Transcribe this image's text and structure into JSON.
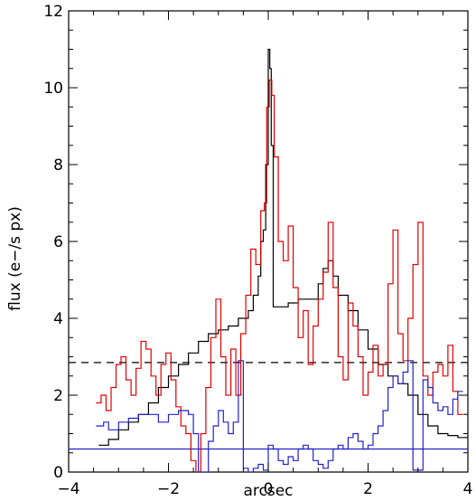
{
  "chart_data": {
    "type": "line",
    "title": "",
    "xlabel": "arcsec",
    "ylabel": "flux  (e−/s px)",
    "xlim": [
      -4,
      4
    ],
    "ylim": [
      0,
      12
    ],
    "grid": false,
    "x_ticks": [
      -4,
      -2,
      0,
      2,
      4
    ],
    "x_tick_labels": [
      "−4",
      "−2",
      "0",
      "2",
      "4"
    ],
    "y_ticks": [
      0,
      2,
      4,
      6,
      8,
      10,
      12
    ],
    "y_tick_labels": [
      "0",
      "2",
      "4",
      "6",
      "8",
      "10",
      "12"
    ],
    "reference_lines": [
      {
        "y": 2.85,
        "color": "#000000",
        "style": "dashed"
      },
      {
        "y": 0.6,
        "color": "#2222cc",
        "style": "solid"
      }
    ],
    "series": [
      {
        "color": "#000000",
        "style": "step",
        "x": [
          -3.4,
          -3.2,
          -3.0,
          -2.8,
          -2.6,
          -2.4,
          -2.2,
          -2.0,
          -1.8,
          -1.6,
          -1.4,
          -1.2,
          -1.0,
          -0.8,
          -0.6,
          -0.4,
          -0.3,
          -0.2,
          -0.15,
          -0.1,
          -0.05,
          0.0,
          0.03,
          0.06,
          0.1,
          0.2,
          0.4,
          0.6,
          0.8,
          1.0,
          1.1,
          1.2,
          1.3,
          1.4,
          1.6,
          1.8,
          2.0,
          2.2,
          2.4,
          2.6,
          2.8,
          3.0,
          3.2,
          3.4,
          3.6,
          3.8
        ],
        "values": [
          0.7,
          0.85,
          1.1,
          1.3,
          1.5,
          1.8,
          2.2,
          2.5,
          2.8,
          3.1,
          3.4,
          3.6,
          3.7,
          3.8,
          4.0,
          4.2,
          4.6,
          5.1,
          6.0,
          6.3,
          8.0,
          11.0,
          10.5,
          8.5,
          4.3,
          4.3,
          4.4,
          4.5,
          4.5,
          4.9,
          5.3,
          5.5,
          5.1,
          4.6,
          4.2,
          3.7,
          3.2,
          2.8,
          2.5,
          2.3,
          2.0,
          1.5,
          1.2,
          1.0,
          0.95,
          0.9
        ]
      },
      {
        "color": "#e00000",
        "style": "step",
        "x": [
          -3.45,
          -3.35,
          -3.25,
          -3.15,
          -3.05,
          -2.95,
          -2.85,
          -2.75,
          -2.65,
          -2.55,
          -2.45,
          -2.35,
          -2.25,
          -2.15,
          -2.05,
          -1.95,
          -1.85,
          -1.75,
          -1.65,
          -1.55,
          -1.45,
          -1.35,
          -1.25,
          -1.15,
          -1.05,
          -0.95,
          -0.85,
          -0.75,
          -0.65,
          -0.55,
          -0.45,
          -0.35,
          -0.25,
          -0.15,
          -0.08,
          -0.03,
          0.02,
          0.07,
          0.12,
          0.2,
          0.3,
          0.4,
          0.5,
          0.6,
          0.7,
          0.8,
          0.9,
          1.0,
          1.1,
          1.2,
          1.3,
          1.4,
          1.5,
          1.6,
          1.7,
          1.8,
          1.9,
          2.0,
          2.1,
          2.2,
          2.3,
          2.4,
          2.5,
          2.6,
          2.7,
          2.8,
          2.9,
          3.0,
          3.1,
          3.2,
          3.3,
          3.4,
          3.5,
          3.6,
          3.7,
          3.8
        ],
        "values": [
          1.8,
          2.0,
          1.6,
          2.2,
          2.8,
          3.0,
          2.4,
          2.0,
          2.7,
          3.4,
          3.2,
          2.5,
          2.0,
          2.8,
          3.1,
          2.4,
          1.7,
          1.2,
          1.0,
          0.3,
          0.0,
          1.0,
          2.2,
          3.5,
          4.5,
          3.0,
          2.0,
          3.2,
          2.0,
          3.6,
          4.6,
          5.8,
          5.4,
          6.8,
          7.0,
          9.5,
          10.2,
          9.8,
          8.2,
          6.0,
          5.5,
          6.4,
          4.8,
          3.5,
          4.2,
          2.8,
          3.8,
          4.5,
          5.2,
          6.5,
          4.8,
          3.0,
          2.4,
          4.4,
          3.8,
          3.0,
          2.0,
          2.6,
          3.3,
          2.5,
          2.8,
          4.9,
          6.3,
          3.6,
          2.9,
          4.0,
          5.4,
          6.5,
          2.5,
          2.0,
          2.6,
          2.8,
          2.5,
          3.3,
          2.1,
          1.5
        ]
      },
      {
        "color": "#2222cc",
        "style": "step",
        "x": [
          -3.45,
          -3.3,
          -3.2,
          -3.0,
          -2.8,
          -2.6,
          -2.4,
          -2.2,
          -2.0,
          -1.8,
          -1.6,
          -1.5,
          -1.4,
          -1.3,
          -1.2,
          -1.1,
          -1.0,
          -0.9,
          -0.8,
          -0.7,
          -0.6,
          -0.5,
          -0.4,
          -0.3,
          -0.2,
          -0.1,
          0.0,
          0.1,
          0.2,
          0.3,
          0.4,
          0.5,
          0.6,
          0.7,
          0.8,
          0.9,
          1.0,
          1.1,
          1.2,
          1.3,
          1.4,
          1.5,
          1.6,
          1.7,
          1.8,
          1.9,
          2.0,
          2.1,
          2.2,
          2.3,
          2.4,
          2.5,
          2.6,
          2.7,
          2.8,
          2.9,
          3.0,
          3.1,
          3.2,
          3.3,
          3.4,
          3.5,
          3.6,
          3.7,
          3.8
        ],
        "values": [
          1.2,
          1.3,
          1.1,
          1.3,
          1.4,
          1.5,
          1.5,
          1.3,
          1.5,
          1.6,
          1.5,
          1.0,
          0.0,
          0.0,
          0.8,
          1.2,
          1.6,
          1.3,
          1.0,
          1.3,
          2.9,
          0.1,
          0.0,
          0.1,
          0.2,
          0.05,
          0.7,
          0.6,
          0.3,
          0.2,
          0.4,
          0.3,
          0.6,
          0.7,
          0.6,
          0.3,
          0.2,
          0.1,
          0.3,
          0.6,
          0.7,
          0.6,
          0.9,
          1.0,
          0.8,
          0.6,
          0.7,
          1.0,
          1.2,
          1.6,
          2.2,
          2.5,
          2.3,
          2.6,
          2.9,
          0.05,
          0.05,
          2.4,
          2.2,
          1.8,
          1.6,
          1.7,
          1.5,
          1.9,
          2.1
        ]
      }
    ]
  }
}
